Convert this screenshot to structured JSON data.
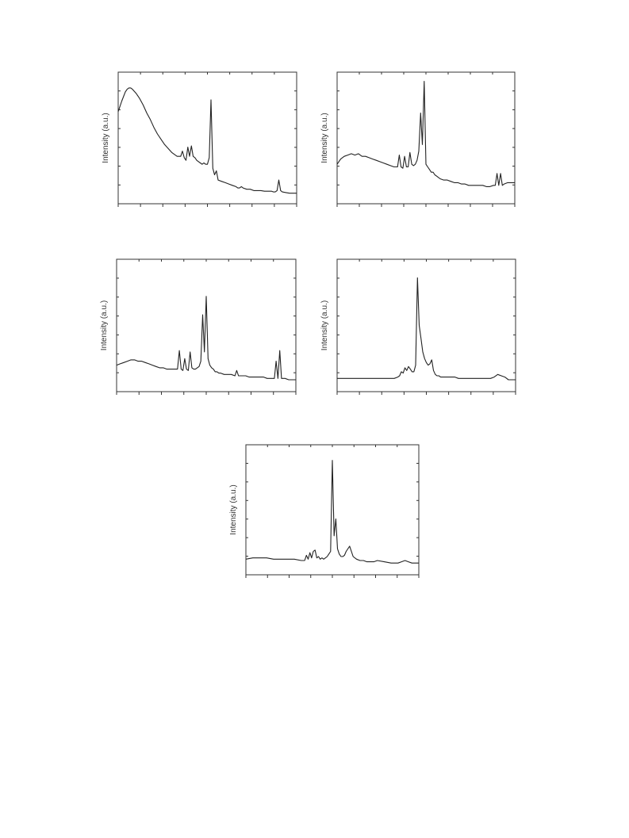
{
  "figure": {
    "panel_count": 5
  },
  "chart_data": [
    {
      "type": "line",
      "ylabel": "Intensity (a.u.)",
      "xlabel": "",
      "xlim": [
        0,
        100
      ],
      "ylim": [
        0,
        100
      ],
      "x_ticks": 9,
      "y_ticks": 8,
      "series": [
        {
          "x": [
            0,
            2,
            4,
            5,
            6,
            7,
            8,
            10,
            12,
            14,
            16,
            18,
            20,
            22,
            24,
            26,
            28,
            30,
            32,
            33,
            34,
            35,
            36,
            37,
            38,
            39,
            40,
            41,
            42,
            43,
            44,
            45,
            46,
            47,
            48,
            49,
            50,
            51,
            52,
            53,
            54,
            55,
            56,
            58,
            60,
            62,
            64,
            66,
            67,
            68,
            69,
            70,
            72,
            74,
            76,
            78,
            80,
            82,
            84,
            86,
            87,
            88,
            89,
            90,
            91,
            92,
            94,
            96,
            98,
            100
          ],
          "y": [
            70,
            78,
            85,
            87,
            88,
            88,
            87,
            84,
            80,
            75,
            69,
            64,
            58,
            53,
            49,
            45,
            42,
            39,
            37,
            36,
            36,
            36,
            40,
            35,
            33,
            43,
            36,
            44,
            36,
            35,
            33,
            32,
            31,
            30,
            31,
            30,
            30,
            35,
            79,
            27,
            22,
            25,
            18,
            17,
            16,
            15,
            14,
            13,
            12,
            12,
            13,
            12,
            11,
            11,
            10,
            10,
            10,
            9.5,
            9.5,
            9.5,
            9,
            9,
            10,
            18,
            10,
            9,
            8.5,
            8,
            8,
            8
          ]
        }
      ]
    },
    {
      "type": "line",
      "ylabel": "Intensity (a.u.)",
      "xlabel": "",
      "xlim": [
        0,
        100
      ],
      "ylim": [
        0,
        100
      ],
      "x_ticks": 9,
      "y_ticks": 8,
      "series": [
        {
          "x": [
            0,
            2,
            4,
            6,
            8,
            10,
            12,
            14,
            16,
            18,
            20,
            22,
            24,
            26,
            28,
            30,
            32,
            34,
            35,
            36,
            37,
            38,
            39,
            40,
            41,
            42,
            43,
            44,
            45,
            46,
            47,
            48,
            49,
            50,
            51,
            52,
            53,
            54,
            55,
            56,
            57,
            58,
            60,
            62,
            64,
            66,
            68,
            70,
            72,
            74,
            76,
            78,
            80,
            82,
            84,
            86,
            88,
            89,
            90,
            91,
            92,
            93,
            94,
            96,
            98,
            100
          ],
          "y": [
            30,
            34,
            36,
            37,
            38,
            37,
            38,
            36,
            36,
            35,
            34,
            33,
            32,
            31,
            30,
            29,
            28,
            28,
            37,
            28,
            27,
            36,
            28,
            28,
            39,
            30,
            29,
            30,
            33,
            40,
            69,
            45,
            93,
            30,
            28,
            26,
            24,
            24,
            22,
            21,
            20,
            19,
            18,
            18,
            17,
            16,
            16,
            15,
            15,
            14,
            14,
            14,
            14,
            14,
            13,
            13,
            14,
            14,
            23,
            14,
            23,
            14,
            15,
            16,
            16,
            16
          ]
        }
      ]
    },
    {
      "type": "line",
      "ylabel": "Intensity (a.u.)",
      "xlabel": "",
      "xlim": [
        0,
        100
      ],
      "ylim": [
        0,
        100
      ],
      "x_ticks": 9,
      "y_ticks": 8,
      "series": [
        {
          "x": [
            0,
            2,
            4,
            6,
            8,
            10,
            12,
            14,
            16,
            18,
            20,
            22,
            24,
            26,
            28,
            30,
            32,
            34,
            35,
            36,
            37,
            38,
            39,
            40,
            41,
            42,
            43,
            44,
            45,
            46,
            47,
            48,
            49,
            50,
            51,
            52,
            53,
            54,
            55,
            56,
            57,
            58,
            60,
            62,
            64,
            66,
            67,
            68,
            70,
            72,
            74,
            76,
            78,
            80,
            82,
            84,
            86,
            88,
            89,
            90,
            91,
            92,
            93,
            94,
            96,
            98,
            100
          ],
          "y": [
            20,
            21,
            22,
            23,
            24,
            24,
            23,
            23,
            22,
            21,
            20,
            19,
            18,
            18,
            17,
            17,
            17,
            17,
            31,
            17,
            16,
            25,
            17,
            16,
            30,
            18,
            17,
            17,
            18,
            19,
            23,
            58,
            30,
            72,
            25,
            20,
            18,
            17,
            15,
            15,
            14,
            14,
            13,
            13,
            13,
            12,
            16,
            12,
            12,
            12,
            11,
            11,
            11,
            11,
            11,
            10,
            10,
            10,
            23,
            10,
            31,
            10,
            10,
            10,
            9,
            9,
            9
          ]
        }
      ]
    },
    {
      "type": "line",
      "ylabel": "Intensity (a.u.)",
      "xlabel": "",
      "xlim": [
        0,
        100
      ],
      "ylim": [
        0,
        100
      ],
      "x_ticks": 9,
      "y_ticks": 8,
      "series": [
        {
          "x": [
            0,
            4,
            8,
            12,
            16,
            20,
            24,
            28,
            32,
            34,
            35,
            36,
            37,
            38,
            39,
            40,
            41,
            42,
            43,
            44,
            45,
            46,
            47,
            48,
            49,
            50,
            51,
            52,
            53,
            54,
            55,
            56,
            57,
            58,
            60,
            62,
            64,
            66,
            68,
            70,
            74,
            78,
            82,
            86,
            88,
            90,
            92,
            94,
            96,
            98,
            100
          ],
          "y": [
            10,
            10,
            10,
            10,
            10,
            10,
            10,
            10,
            10,
            11,
            12,
            15,
            14,
            18,
            16,
            19,
            17,
            15,
            15,
            20,
            86,
            50,
            40,
            30,
            25,
            22,
            20,
            21,
            24,
            16,
            13,
            12,
            12,
            11,
            11,
            11,
            11,
            11,
            10,
            10,
            10,
            10,
            10,
            10,
            11,
            13,
            12,
            11,
            9,
            9,
            9
          ]
        }
      ]
    },
    {
      "type": "line",
      "ylabel": "Intensity (a.u.)",
      "xlabel": "",
      "xlim": [
        0,
        100
      ],
      "ylim": [
        0,
        100
      ],
      "x_ticks": 9,
      "y_ticks": 8,
      "series": [
        {
          "x": [
            0,
            4,
            8,
            12,
            16,
            20,
            24,
            28,
            32,
            34,
            35,
            36,
            37,
            38,
            39,
            40,
            41,
            42,
            43,
            44,
            45,
            46,
            47,
            48,
            49,
            50,
            51,
            52,
            53,
            54,
            55,
            56,
            57,
            58,
            60,
            62,
            64,
            66,
            68,
            70,
            72,
            74,
            76,
            80,
            84,
            86,
            88,
            90,
            92,
            94,
            96,
            98,
            100
          ],
          "y": [
            12,
            13,
            13,
            13,
            12,
            12,
            12,
            12,
            11,
            11,
            15,
            12,
            17,
            13,
            18,
            19,
            13,
            14,
            12,
            13,
            12,
            13,
            14,
            16,
            18,
            88,
            30,
            43,
            20,
            16,
            14,
            14,
            15,
            18,
            22,
            14,
            12,
            11,
            11,
            10,
            10,
            10,
            11,
            10,
            9,
            9,
            9,
            10,
            11,
            10,
            9,
            9,
            9
          ]
        }
      ]
    }
  ]
}
